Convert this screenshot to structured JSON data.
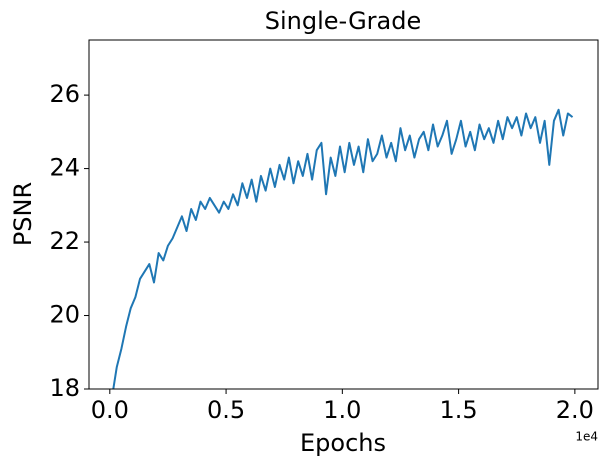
{
  "chart_data": {
    "type": "line",
    "title": "Single-Grade",
    "xlabel": "Epochs",
    "ylabel": "PSNR",
    "x_offset_label": "1e4",
    "x": [
      100,
      300,
      500,
      700,
      900,
      1100,
      1300,
      1500,
      1700,
      1900,
      2100,
      2300,
      2500,
      2700,
      2900,
      3100,
      3300,
      3500,
      3700,
      3900,
      4100,
      4300,
      4500,
      4700,
      4900,
      5100,
      5300,
      5500,
      5700,
      5900,
      6100,
      6300,
      6500,
      6700,
      6900,
      7100,
      7300,
      7500,
      7700,
      7900,
      8100,
      8300,
      8500,
      8700,
      8900,
      9100,
      9300,
      9500,
      9700,
      9900,
      10100,
      10300,
      10500,
      10700,
      10900,
      11100,
      11300,
      11500,
      11700,
      11900,
      12100,
      12300,
      12500,
      12700,
      12900,
      13100,
      13300,
      13500,
      13700,
      13900,
      14100,
      14300,
      14500,
      14700,
      14900,
      15100,
      15300,
      15500,
      15700,
      15900,
      16100,
      16300,
      16500,
      16700,
      16900,
      17100,
      17300,
      17500,
      17700,
      17900,
      18100,
      18300,
      18500,
      18700,
      18900,
      19100,
      19300,
      19500,
      19700,
      19900
    ],
    "series": [
      {
        "name": "PSNR",
        "color": "#1f77b4",
        "values": [
          17.8,
          18.6,
          19.1,
          19.7,
          20.2,
          20.5,
          21.0,
          21.2,
          21.4,
          20.9,
          21.7,
          21.5,
          21.9,
          22.1,
          22.4,
          22.7,
          22.3,
          22.9,
          22.6,
          23.1,
          22.9,
          23.2,
          23.0,
          22.8,
          23.1,
          22.9,
          23.3,
          23.0,
          23.6,
          23.2,
          23.7,
          23.1,
          23.8,
          23.4,
          24.0,
          23.5,
          24.1,
          23.7,
          24.3,
          23.6,
          24.2,
          23.8,
          24.4,
          23.7,
          24.5,
          24.7,
          23.3,
          24.3,
          23.8,
          24.6,
          23.9,
          24.7,
          24.1,
          24.6,
          23.9,
          24.8,
          24.2,
          24.4,
          24.9,
          24.3,
          24.7,
          24.2,
          25.1,
          24.5,
          24.9,
          24.3,
          24.8,
          25.0,
          24.5,
          25.2,
          24.6,
          24.9,
          25.3,
          24.4,
          24.8,
          25.3,
          24.6,
          25.0,
          24.5,
          25.2,
          24.8,
          25.1,
          24.7,
          25.3,
          24.8,
          25.4,
          25.1,
          25.4,
          24.9,
          25.5,
          25.1,
          25.4,
          24.7,
          25.3,
          24.1,
          25.3,
          25.6,
          24.9,
          25.5,
          25.4
        ]
      }
    ],
    "xlim": [
      -895,
      20995
    ],
    "ylim": [
      18,
      27.5
    ],
    "xticks": [
      {
        "value": 0,
        "label": "0.0"
      },
      {
        "value": 5000,
        "label": "0.5"
      },
      {
        "value": 10000,
        "label": "1.0"
      },
      {
        "value": 15000,
        "label": "1.5"
      },
      {
        "value": 20000,
        "label": "2.0"
      }
    ],
    "yticks": [
      18,
      20,
      22,
      24,
      26
    ]
  }
}
